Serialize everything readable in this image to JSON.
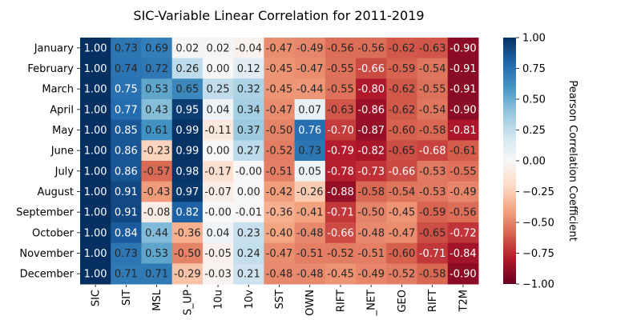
{
  "chart_data": {
    "type": "heatmap",
    "title": "SIC-Variable Linear Correlation for 2011-2019",
    "rows": [
      "January",
      "February",
      "March",
      "April",
      "May",
      "June",
      "July",
      "August",
      "September",
      "October",
      "November",
      "December"
    ],
    "columns": [
      "SIC",
      "SIT",
      "MSL",
      "S_UP",
      "10u",
      "10v",
      "SST",
      "OWN",
      "RIFT",
      "_NET",
      "GEO",
      "RIFT",
      "T2M"
    ],
    "values": [
      [
        1.0,
        0.73,
        0.69,
        0.02,
        0.02,
        -0.04,
        -0.47,
        -0.49,
        -0.56,
        -0.56,
        -0.62,
        -0.63,
        -0.9
      ],
      [
        1.0,
        0.74,
        0.72,
        0.26,
        0.0,
        0.12,
        -0.45,
        -0.47,
        -0.55,
        -0.66,
        -0.59,
        -0.54,
        -0.91
      ],
      [
        1.0,
        0.75,
        0.53,
        0.65,
        0.25,
        0.32,
        -0.45,
        -0.44,
        -0.55,
        -0.8,
        -0.62,
        -0.55,
        -0.91
      ],
      [
        1.0,
        0.77,
        0.43,
        0.95,
        0.04,
        0.34,
        -0.47,
        0.07,
        -0.63,
        -0.86,
        -0.62,
        -0.54,
        -0.9
      ],
      [
        1.0,
        0.85,
        0.61,
        0.99,
        -0.11,
        0.37,
        -0.5,
        0.76,
        -0.7,
        -0.87,
        -0.6,
        -0.58,
        -0.81
      ],
      [
        1.0,
        0.86,
        -0.23,
        0.99,
        0.0,
        0.27,
        -0.52,
        0.73,
        -0.79,
        -0.82,
        -0.65,
        -0.68,
        -0.61
      ],
      [
        1.0,
        0.86,
        -0.57,
        0.98,
        -0.17,
        -0.0,
        -0.51,
        0.05,
        -0.78,
        -0.73,
        -0.66,
        -0.53,
        -0.55
      ],
      [
        1.0,
        0.91,
        -0.43,
        0.97,
        -0.07,
        0.0,
        -0.42,
        -0.26,
        -0.88,
        -0.58,
        -0.54,
        -0.53,
        -0.49
      ],
      [
        1.0,
        0.91,
        -0.08,
        0.82,
        -0.0,
        -0.01,
        -0.36,
        -0.41,
        -0.71,
        -0.5,
        -0.45,
        -0.59,
        -0.56
      ],
      [
        1.0,
        0.84,
        0.44,
        -0.36,
        0.04,
        0.23,
        -0.4,
        -0.48,
        -0.66,
        -0.48,
        -0.47,
        -0.65,
        -0.72
      ],
      [
        1.0,
        0.73,
        0.53,
        -0.5,
        -0.05,
        0.24,
        -0.47,
        -0.51,
        -0.52,
        -0.51,
        -0.6,
        -0.71,
        -0.84
      ],
      [
        1.0,
        0.71,
        0.71,
        -0.29,
        -0.03,
        0.21,
        -0.48,
        -0.48,
        -0.45,
        -0.49,
        -0.52,
        -0.58,
        -0.9
      ]
    ],
    "value_format": "0.00",
    "vmin": -1.0,
    "vmax": 1.0,
    "colormap": "RdBu",
    "colorbar": {
      "label": "Pearson Correlation Coefficient",
      "ticks": [
        "1.00",
        "0.75",
        "0.50",
        "0.25",
        "0.00",
        "−0.25",
        "−0.50",
        "−0.75",
        "−1.00"
      ],
      "tick_values": [
        1.0,
        0.75,
        0.5,
        0.25,
        0.0,
        -0.25,
        -0.5,
        -0.75,
        -1.0
      ]
    },
    "legend_position": "right",
    "grid": false
  }
}
